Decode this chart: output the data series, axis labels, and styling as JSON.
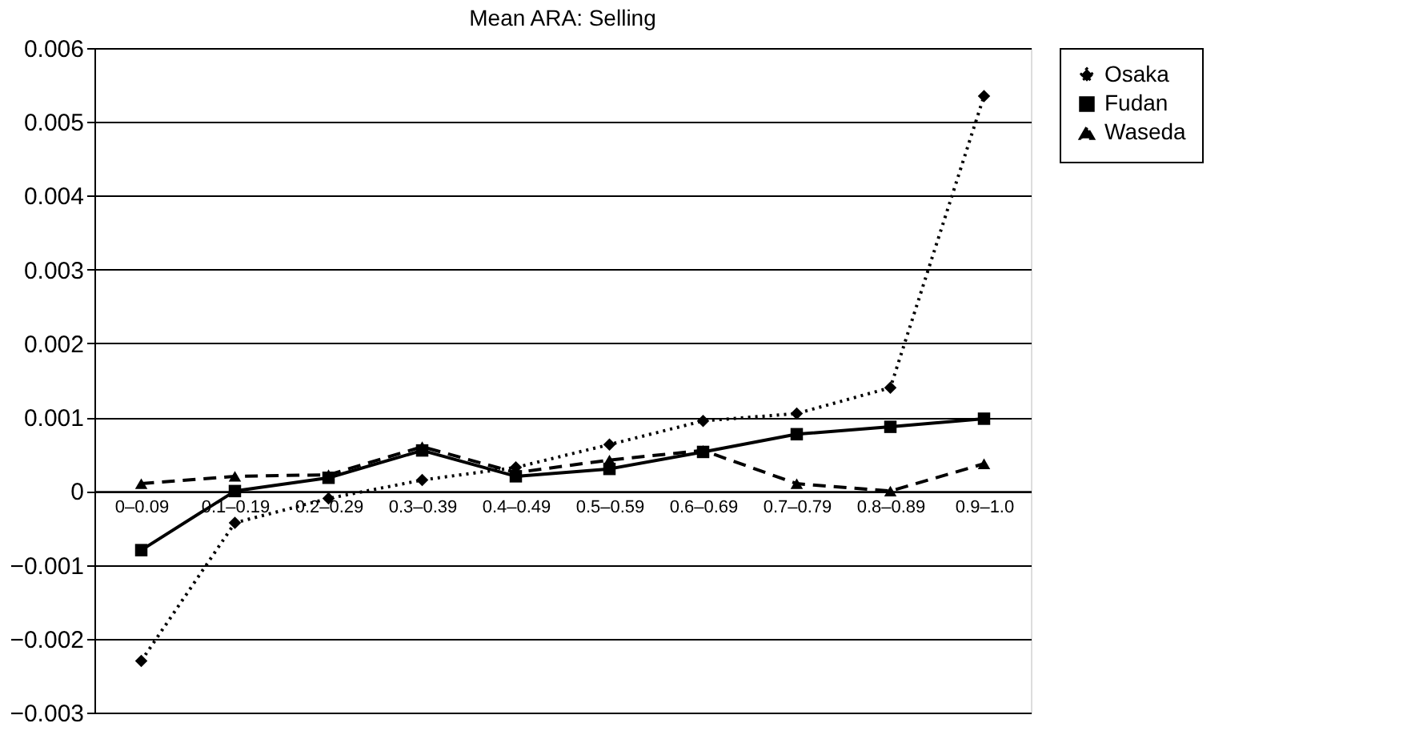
{
  "chart_data": {
    "type": "line",
    "title": "Mean ARA: Selling",
    "categories": [
      "0–0.09",
      "0.1–0.19",
      "0.2–0.29",
      "0.3–0.39",
      "0.4–0.49",
      "0.5–0.59",
      "0.6–0.69",
      "0.7–0.79",
      "0.8–0.89",
      "0.9–1.0"
    ],
    "series": [
      {
        "name": "Osaka",
        "color": "#000000",
        "marker": "diamond",
        "line_style": "dotted",
        "values": [
          -0.0023,
          -0.00043,
          -0.0001,
          0.00015,
          0.00032,
          0.00063,
          0.00095,
          0.00105,
          0.0014,
          0.00535
        ]
      },
      {
        "name": "Fudan",
        "color": "#000000",
        "marker": "square",
        "line_style": "solid",
        "values": [
          -0.0008,
          0.0,
          0.00018,
          0.00055,
          0.0002,
          0.0003,
          0.00053,
          0.00077,
          0.00087,
          0.00098
        ]
      },
      {
        "name": "Waseda",
        "color": "#000000",
        "marker": "triangle",
        "line_style": "dashed",
        "values": [
          0.0001,
          0.0002,
          0.00022,
          0.0006,
          0.00025,
          0.00042,
          0.00055,
          0.0001,
          0.0,
          0.00037
        ]
      }
    ],
    "ylim": [
      -0.003,
      0.006
    ],
    "yticks": [
      -0.003,
      -0.002,
      -0.001,
      0,
      0.001,
      0.002,
      0.003,
      0.004,
      0.005,
      0.006
    ],
    "grid": "y",
    "legend": "right"
  }
}
